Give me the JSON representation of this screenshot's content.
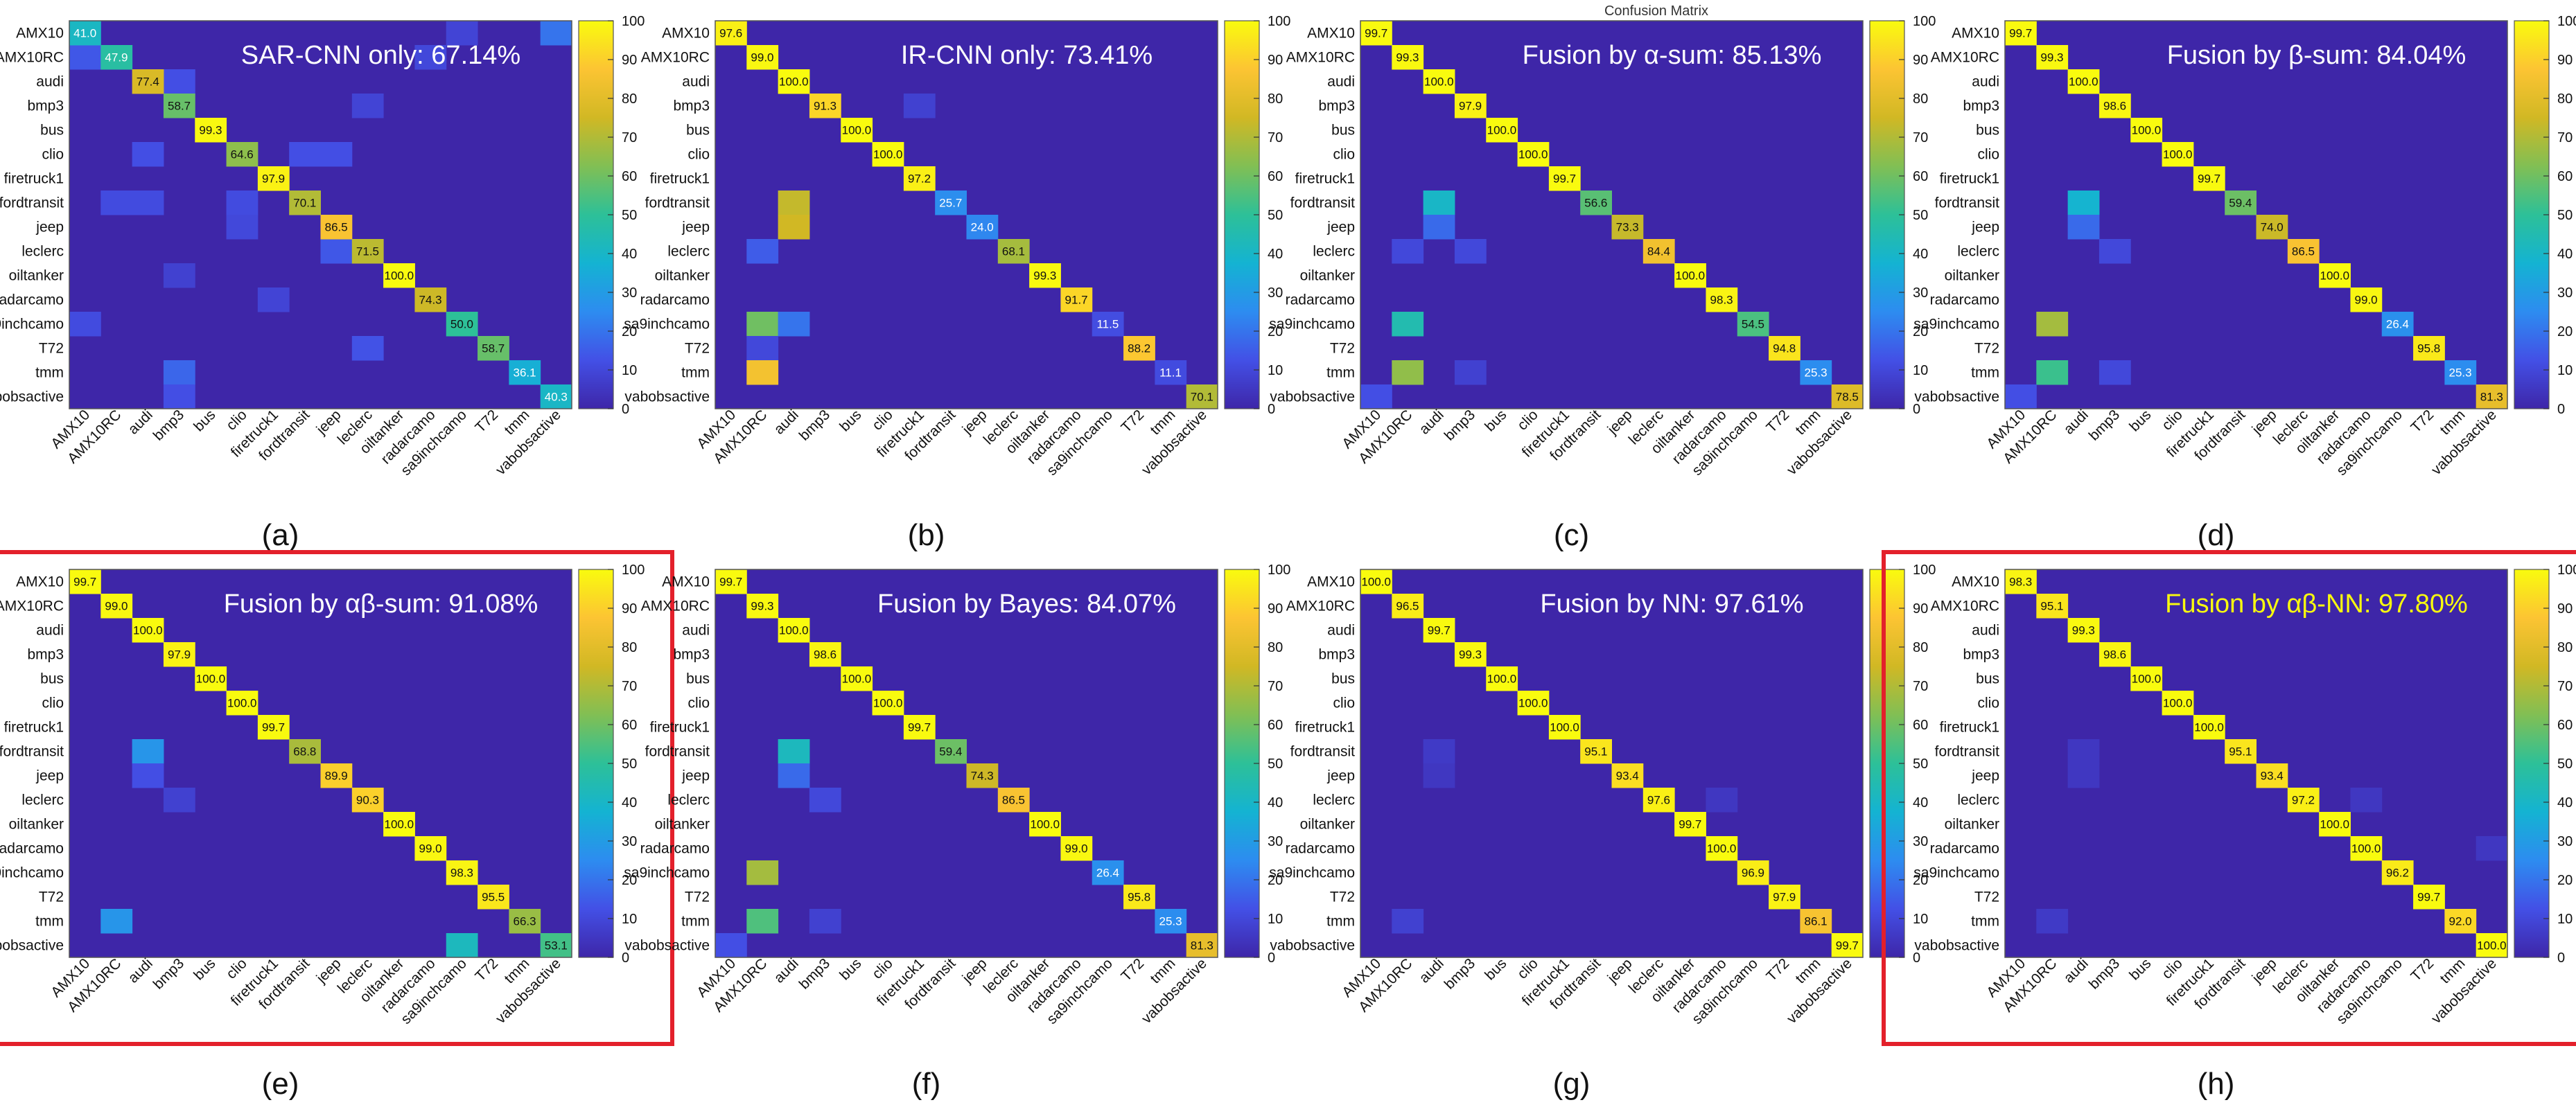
{
  "figure_fragment": "Confusion Matrix",
  "colors": {
    "cmap_stops": [
      "#3e26a8",
      "#4350e6",
      "#2d8cf0",
      "#14b3d2",
      "#2dc098",
      "#81bf54",
      "#d1b824",
      "#fcc433",
      "#f9fb0e"
    ],
    "highlight": "#e3202b",
    "title_default": "#ffffff",
    "title_highlight": "#f9fb0e"
  },
  "chart_data": [
    {
      "type": "heatmap",
      "title": "SAR-CNN only: 67.14%",
      "caption": "(a)",
      "categories": [
        "AMX10",
        "AMX10RC",
        "audi",
        "bmp3",
        "bus",
        "clio",
        "firetruck1",
        "fordtransit",
        "jeep",
        "leclerc",
        "oiltanker",
        "radarcamo",
        "sa9inchcamo",
        "T72",
        "tmm",
        "vabobsactive"
      ],
      "diagonal": [
        41.0,
        47.9,
        77.4,
        58.7,
        99.3,
        64.6,
        97.9,
        70.1,
        86.5,
        71.5,
        100.0,
        74.3,
        50.0,
        58.7,
        36.1,
        40.3
      ],
      "off_diagonal": [
        [
          0,
          15,
          20
        ],
        [
          0,
          12,
          9
        ],
        [
          1,
          0,
          14
        ],
        [
          1,
          11,
          10
        ],
        [
          2,
          3,
          12
        ],
        [
          3,
          9,
          9
        ],
        [
          5,
          2,
          12
        ],
        [
          5,
          7,
          12
        ],
        [
          5,
          8,
          12
        ],
        [
          7,
          1,
          11
        ],
        [
          7,
          2,
          11
        ],
        [
          7,
          5,
          11
        ],
        [
          8,
          5,
          10
        ],
        [
          9,
          8,
          14
        ],
        [
          10,
          3,
          8
        ],
        [
          11,
          6,
          9
        ],
        [
          12,
          0,
          11
        ],
        [
          13,
          9,
          13
        ],
        [
          14,
          3,
          17
        ],
        [
          15,
          3,
          12
        ]
      ],
      "colorbar_ticks": [
        0,
        10,
        20,
        30,
        40,
        50,
        60,
        70,
        80,
        90,
        100
      ],
      "highlighted": false
    },
    {
      "type": "heatmap",
      "title": "IR-CNN only: 73.41%",
      "caption": "(b)",
      "categories": [
        "AMX10",
        "AMX10RC",
        "audi",
        "bmp3",
        "bus",
        "clio",
        "firetruck1",
        "fordtransit",
        "jeep",
        "leclerc",
        "oiltanker",
        "radarcamo",
        "sa9inchcamo",
        "T72",
        "tmm",
        "vabobsactive"
      ],
      "diagonal": [
        97.6,
        99.0,
        100.0,
        91.3,
        100.0,
        100.0,
        97.2,
        25.7,
        24.0,
        68.1,
        99.3,
        91.7,
        11.5,
        88.2,
        11.1,
        70.1
      ],
      "off_diagonal": [
        [
          7,
          2,
          73
        ],
        [
          8,
          2,
          75
        ],
        [
          9,
          1,
          15
        ],
        [
          12,
          1,
          60
        ],
        [
          12,
          2,
          20
        ],
        [
          13,
          1,
          10
        ],
        [
          14,
          1,
          85
        ],
        [
          3,
          6,
          8
        ]
      ],
      "colorbar_ticks": [
        0,
        10,
        20,
        30,
        40,
        50,
        60,
        70,
        80,
        90,
        100
      ],
      "highlighted": false
    },
    {
      "type": "heatmap",
      "title": "Fusion by α-sum: 85.13%",
      "caption": "(c)",
      "categories": [
        "AMX10",
        "AMX10RC",
        "audi",
        "bmp3",
        "bus",
        "clio",
        "firetruck1",
        "fordtransit",
        "jeep",
        "leclerc",
        "oiltanker",
        "radarcamo",
        "sa9inchcamo",
        "T72",
        "tmm",
        "vabobsactive"
      ],
      "diagonal": [
        99.7,
        99.3,
        100.0,
        97.9,
        100.0,
        100.0,
        99.7,
        56.6,
        73.3,
        84.4,
        100.0,
        98.3,
        54.5,
        94.8,
        25.3,
        78.5
      ],
      "off_diagonal": [
        [
          7,
          2,
          40
        ],
        [
          8,
          2,
          18
        ],
        [
          9,
          1,
          10
        ],
        [
          9,
          3,
          10
        ],
        [
          12,
          1,
          45
        ],
        [
          14,
          1,
          65
        ],
        [
          14,
          3,
          8
        ],
        [
          15,
          0,
          12
        ]
      ],
      "colorbar_ticks": [
        0,
        10,
        20,
        30,
        40,
        50,
        60,
        70,
        80,
        90,
        100
      ],
      "highlighted": false
    },
    {
      "type": "heatmap",
      "title": "Fusion by β-sum: 84.04%",
      "caption": "(d)",
      "categories": [
        "AMX10",
        "AMX10RC",
        "audi",
        "bmp3",
        "bus",
        "clio",
        "firetruck1",
        "fordtransit",
        "jeep",
        "leclerc",
        "oiltanker",
        "radarcamo",
        "sa9inchcamo",
        "T72",
        "tmm",
        "vabobsactive"
      ],
      "diagonal": [
        99.7,
        99.3,
        100.0,
        98.6,
        100.0,
        100.0,
        99.7,
        59.4,
        74.0,
        86.5,
        100.0,
        99.0,
        26.4,
        95.8,
        25.3,
        81.3
      ],
      "off_diagonal": [
        [
          7,
          2,
          38
        ],
        [
          8,
          2,
          18
        ],
        [
          9,
          3,
          10
        ],
        [
          12,
          1,
          68
        ],
        [
          14,
          1,
          52
        ],
        [
          14,
          3,
          10
        ],
        [
          15,
          0,
          12
        ]
      ],
      "colorbar_ticks": [
        0,
        10,
        20,
        30,
        40,
        50,
        60,
        70,
        80,
        90,
        100
      ],
      "highlighted": false
    },
    {
      "type": "heatmap",
      "title": "Fusion by αβ-sum: 91.08%",
      "caption": "(e)",
      "categories": [
        "AMX10",
        "AMX10RC",
        "audi",
        "bmp3",
        "bus",
        "clio",
        "firetruck1",
        "fordtransit",
        "jeep",
        "leclerc",
        "oiltanker",
        "radarcamo",
        "sa9inchcamo",
        "T72",
        "tmm",
        "vabobsactive"
      ],
      "diagonal": [
        99.7,
        99.0,
        100.0,
        97.9,
        100.0,
        100.0,
        99.7,
        68.8,
        89.9,
        90.3,
        100.0,
        99.0,
        98.3,
        95.5,
        66.3,
        53.1
      ],
      "off_diagonal": [
        [
          7,
          2,
          28
        ],
        [
          8,
          2,
          12
        ],
        [
          9,
          3,
          8
        ],
        [
          14,
          1,
          28
        ],
        [
          15,
          12,
          42
        ]
      ],
      "colorbar_ticks": [
        0,
        10,
        20,
        30,
        40,
        50,
        60,
        70,
        80,
        90,
        100
      ],
      "highlighted": true
    },
    {
      "type": "heatmap",
      "title": "Fusion by Bayes: 84.07%",
      "caption": "(f)",
      "categories": [
        "AMX10",
        "AMX10RC",
        "audi",
        "bmp3",
        "bus",
        "clio",
        "firetruck1",
        "fordtransit",
        "jeep",
        "leclerc",
        "oiltanker",
        "radarcamo",
        "sa9inchcamo",
        "T72",
        "tmm",
        "vabobsactive"
      ],
      "diagonal": [
        99.7,
        99.3,
        100.0,
        98.6,
        100.0,
        100.0,
        99.7,
        59.4,
        74.3,
        86.5,
        100.0,
        99.0,
        26.4,
        95.8,
        25.3,
        81.3
      ],
      "off_diagonal": [
        [
          7,
          2,
          42
        ],
        [
          8,
          2,
          18
        ],
        [
          9,
          3,
          10
        ],
        [
          12,
          1,
          68
        ],
        [
          14,
          1,
          55
        ],
        [
          14,
          3,
          8
        ],
        [
          15,
          0,
          12
        ]
      ],
      "colorbar_ticks": [
        0,
        10,
        20,
        30,
        40,
        50,
        60,
        70,
        80,
        90,
        100
      ],
      "highlighted": false
    },
    {
      "type": "heatmap",
      "title": "Fusion by NN: 97.61%",
      "caption": "(g)",
      "categories": [
        "AMX10",
        "AMX10RC",
        "audi",
        "bmp3",
        "bus",
        "clio",
        "firetruck1",
        "fordtransit",
        "jeep",
        "leclerc",
        "oiltanker",
        "radarcamo",
        "sa9inchcamo",
        "T72",
        "tmm",
        "vabobsactive"
      ],
      "diagonal": [
        100.0,
        96.5,
        99.7,
        99.3,
        100.0,
        100.0,
        100.0,
        95.1,
        93.4,
        97.6,
        99.7,
        100.0,
        96.9,
        97.9,
        86.1,
        99.7
      ],
      "off_diagonal": [
        [
          7,
          2,
          6
        ],
        [
          8,
          2,
          5
        ],
        [
          14,
          1,
          8
        ],
        [
          9,
          11,
          5
        ]
      ],
      "colorbar_ticks": [
        0,
        10,
        20,
        30,
        40,
        50,
        60,
        70,
        80,
        90,
        100
      ],
      "highlighted": false
    },
    {
      "type": "heatmap",
      "title": "Fusion by αβ-NN: 97.80%",
      "caption": "(h)",
      "categories": [
        "AMX10",
        "AMX10RC",
        "audi",
        "bmp3",
        "bus",
        "clio",
        "firetruck1",
        "fordtransit",
        "jeep",
        "leclerc",
        "oiltanker",
        "radarcamo",
        "sa9inchcamo",
        "T72",
        "tmm",
        "vabobsactive"
      ],
      "diagonal": [
        98.3,
        95.1,
        99.3,
        98.6,
        100.0,
        100.0,
        100.0,
        95.1,
        93.4,
        97.2,
        100.0,
        100.0,
        96.2,
        99.7,
        92.0,
        100.0
      ],
      "off_diagonal": [
        [
          7,
          2,
          5
        ],
        [
          8,
          2,
          5
        ],
        [
          14,
          1,
          6
        ],
        [
          9,
          11,
          5
        ],
        [
          11,
          15,
          5
        ]
      ],
      "colorbar_ticks": [
        0,
        10,
        20,
        30,
        40,
        50,
        60,
        70,
        80,
        90,
        100
      ],
      "highlighted": true
    }
  ]
}
